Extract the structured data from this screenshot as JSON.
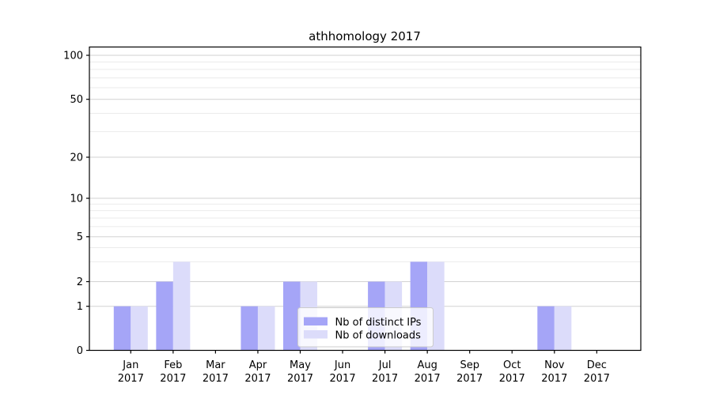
{
  "figure": {
    "title": "athhomology 2017",
    "background_color": "#ffffff"
  },
  "chart_data": {
    "type": "bar",
    "title": "athhomology 2017",
    "xlabel": "",
    "ylabel": "",
    "grid": true,
    "categories": [
      "Jan",
      "Feb",
      "Mar",
      "Apr",
      "May",
      "Jun",
      "Jul",
      "Aug",
      "Sep",
      "Oct",
      "Nov",
      "Dec"
    ],
    "category_year": "2017",
    "series": [
      {
        "name": "Nb of distinct IPs",
        "color": "#a5a5f7",
        "values": [
          1,
          2,
          0,
          1,
          2,
          0,
          2,
          3,
          0,
          0,
          1,
          0
        ]
      },
      {
        "name": "Nb of downloads",
        "color": "#dcdcfa",
        "values": [
          1,
          3,
          0,
          1,
          2,
          0,
          2,
          3,
          0,
          0,
          1,
          0
        ]
      }
    ],
    "yaxis": {
      "scale": "symlog",
      "ylim": [
        0,
        130
      ],
      "ticks": [
        0,
        1,
        2,
        5,
        10,
        20,
        50,
        100
      ],
      "tick_labels": [
        "0",
        "1",
        "2",
        "5",
        "10",
        "20",
        "50",
        "100"
      ],
      "minor_ticks": [
        3,
        4,
        6,
        7,
        8,
        9,
        30,
        40,
        60,
        70,
        80,
        90
      ]
    },
    "legend": {
      "position": "lower-center-inside",
      "entries": [
        "Nb of distinct IPs",
        "Nb of downloads"
      ]
    }
  },
  "colors": {
    "grid_major": "#d2d2d2",
    "grid_minor": "#ebebeb",
    "axis": "#000000",
    "legend_border": "#cccccc",
    "text": "#000000"
  }
}
